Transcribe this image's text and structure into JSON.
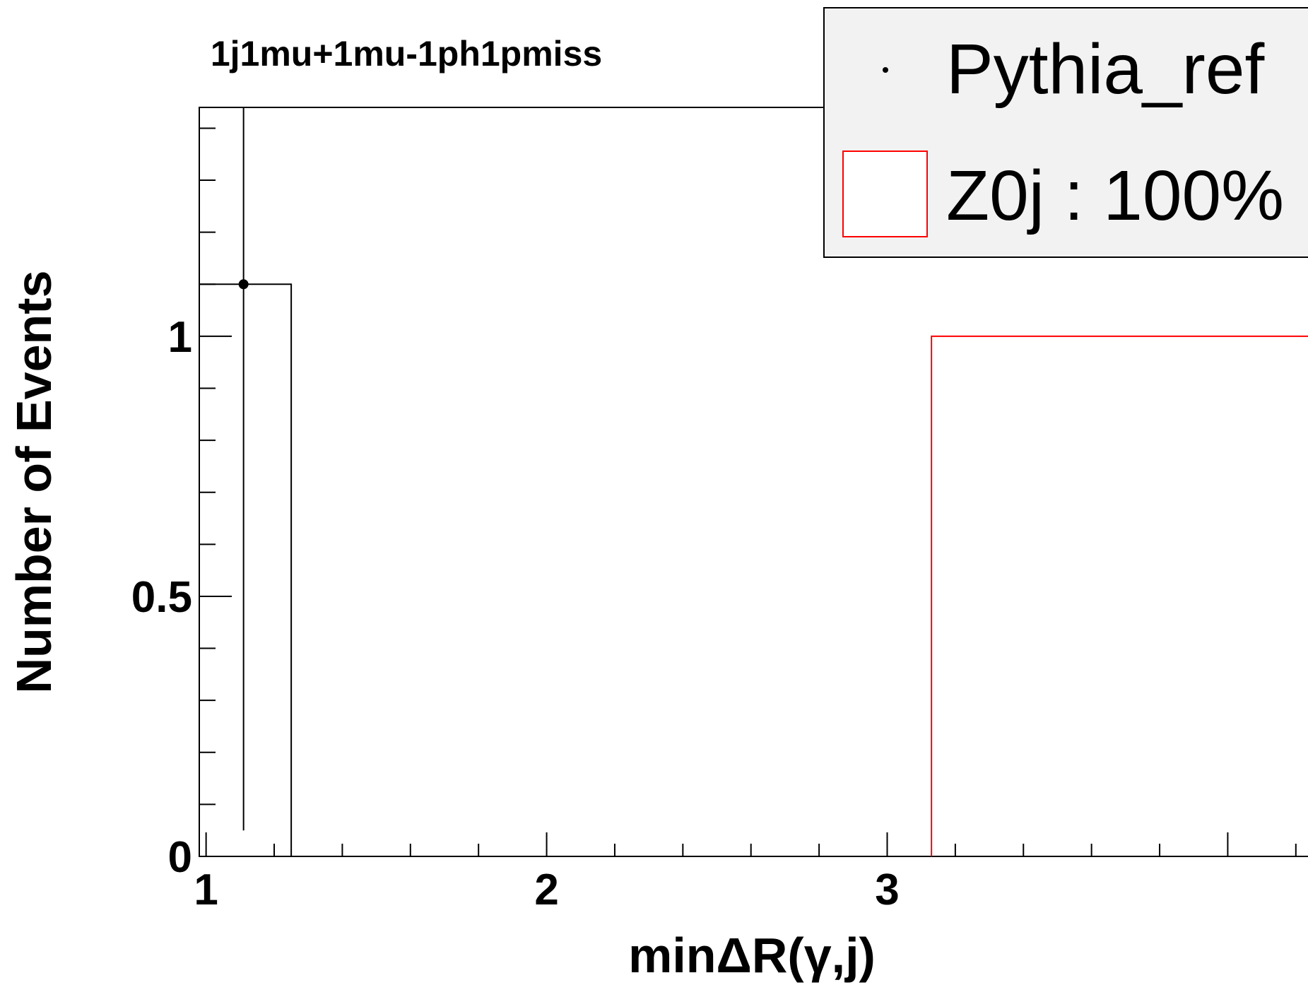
{
  "chart_data": {
    "type": "bar",
    "title": "1j1mu+1mu-1ph1pmiss",
    "xlabel": "minΔR(γ,j)",
    "ylabel": "Number of Events",
    "xlim": [
      0.98,
      4.3
    ],
    "ylim": [
      0,
      1.44
    ],
    "x_ticks": [
      {
        "value": 1,
        "label": "1"
      },
      {
        "value": 2,
        "label": "2"
      },
      {
        "value": 3,
        "label": "3"
      }
    ],
    "y_ticks": [
      {
        "value": 0,
        "label": "0"
      },
      {
        "value": 0.5,
        "label": "0.5"
      },
      {
        "value": 1,
        "label": "1"
      }
    ],
    "legend_position": "top-right",
    "series": [
      {
        "name": "Pythia_ref",
        "style": "points-with-errors",
        "color": "#000000",
        "bins": [
          {
            "x0": 0.98,
            "x1": 1.25,
            "value": 1.1
          }
        ],
        "points": [
          {
            "x": 1.11,
            "y": 1.1,
            "err_low": 1.05,
            "err_high": 0.34
          }
        ]
      },
      {
        "name": "Z0j : 100%",
        "style": "step-histogram",
        "color": "#ff0000",
        "bins": [
          {
            "x0": 3.13,
            "x1": 4.3,
            "value": 1.0
          }
        ]
      }
    ]
  }
}
